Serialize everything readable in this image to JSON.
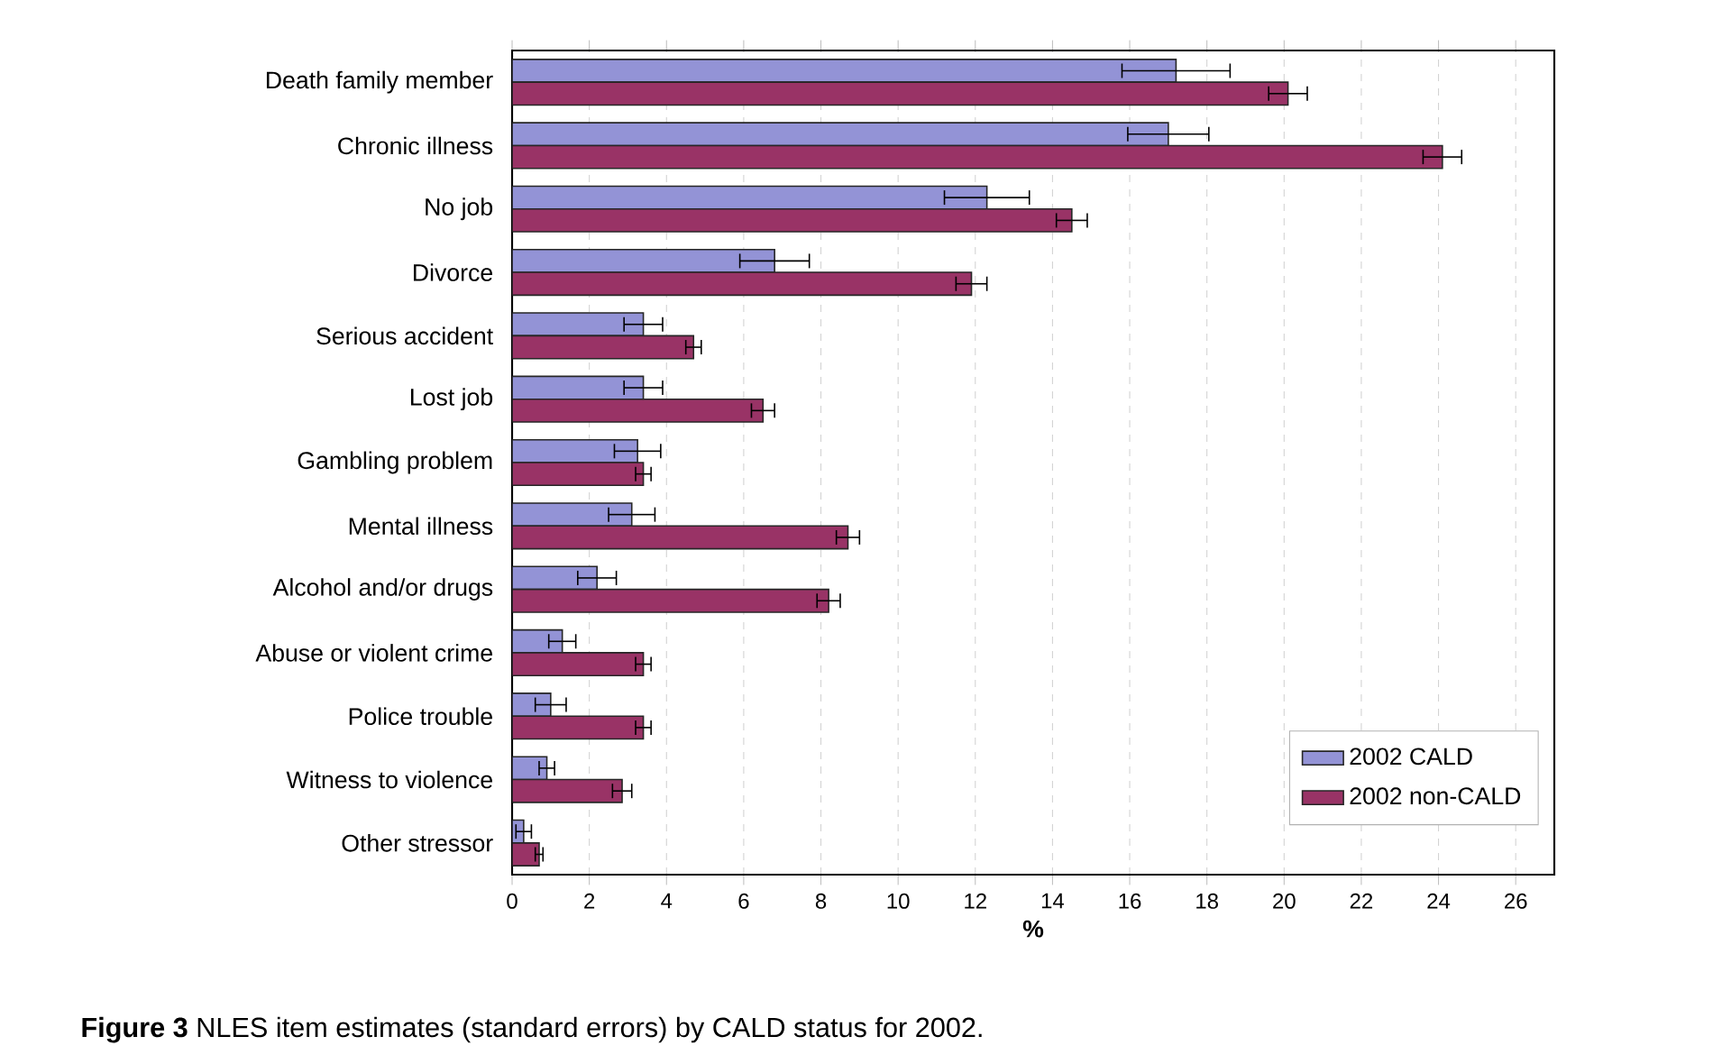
{
  "chart_data": {
    "type": "bar",
    "orientation": "horizontal",
    "categories": [
      "Death family member",
      "Chronic illness",
      "No job",
      "Divorce",
      "Serious accident",
      "Lost job",
      "Gambling problem",
      "Mental illness",
      "Alcohol and/or drugs",
      "Abuse or violent crime",
      "Police trouble",
      "Witness to violence",
      "Other stressor"
    ],
    "series": [
      {
        "name": "2002 CALD",
        "color": "#9393d6",
        "values": [
          17.2,
          17.0,
          12.3,
          6.8,
          3.4,
          3.4,
          3.25,
          3.1,
          2.2,
          1.3,
          1.0,
          0.9,
          0.3
        ],
        "errors": [
          1.4,
          1.05,
          1.1,
          0.9,
          0.5,
          0.5,
          0.6,
          0.6,
          0.5,
          0.35,
          0.4,
          0.2,
          0.2
        ]
      },
      {
        "name": "2002 non-CALD",
        "color": "#993366",
        "values": [
          20.1,
          24.1,
          14.5,
          11.9,
          4.7,
          6.5,
          3.4,
          8.7,
          8.2,
          3.4,
          3.4,
          2.85,
          0.7
        ],
        "errors": [
          0.5,
          0.5,
          0.4,
          0.4,
          0.2,
          0.3,
          0.2,
          0.3,
          0.3,
          0.2,
          0.2,
          0.25,
          0.1
        ]
      }
    ],
    "xlim": [
      0,
      27
    ],
    "xticks": [
      0,
      2,
      4,
      6,
      8,
      10,
      12,
      14,
      16,
      18,
      20,
      22,
      24,
      26
    ],
    "xlabel": "%",
    "grid": "x",
    "legend": "bottom right",
    "annotations": [
      "**Figure 3** NLES item estimates (standard errors) by CALD status for 2002."
    ]
  }
}
